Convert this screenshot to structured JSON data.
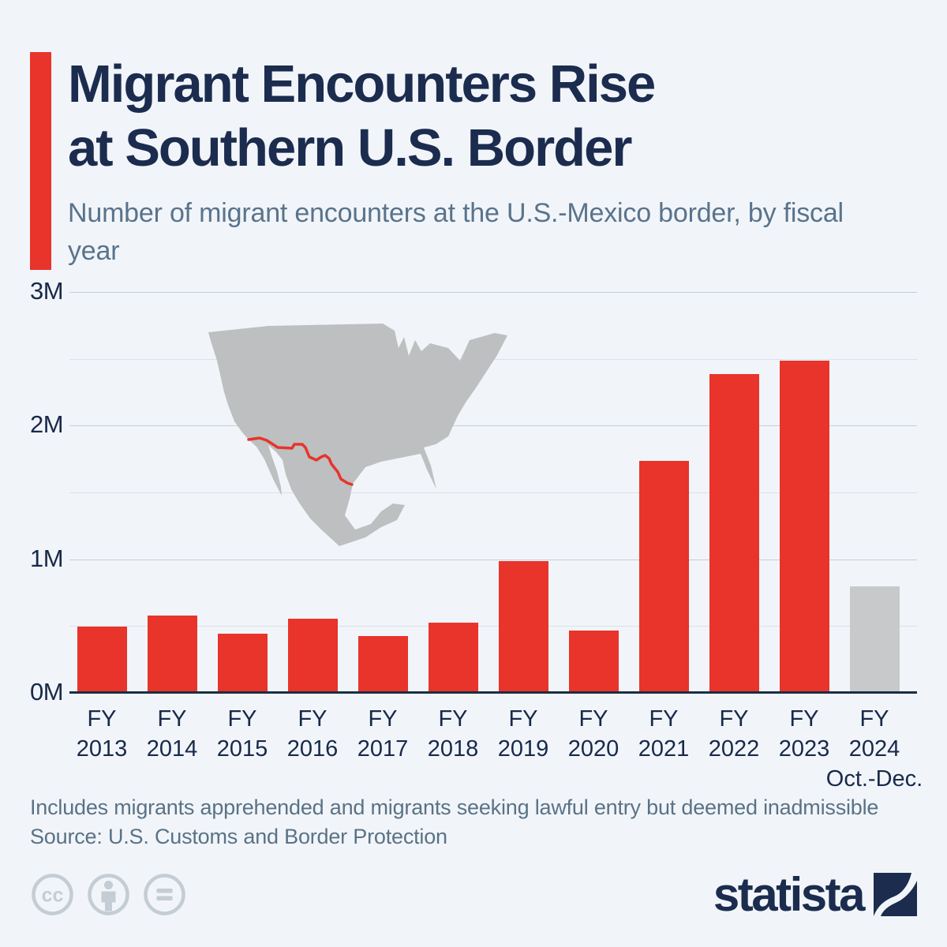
{
  "header": {
    "title_line1": "Migrant Encounters Rise",
    "title_line2": "at Southern U.S. Border",
    "subtitle": "Number of migrant encounters at the U.S.-Mexico border, by fiscal year",
    "accent_color": "#e8342a",
    "title_color": "#1b2c4e",
    "subtitle_color": "#5a738c"
  },
  "chart_data": {
    "type": "bar",
    "title": "Number of migrant encounters at the U.S.-Mexico border, by fiscal year",
    "unit": "millions of encounters",
    "categories": [
      "FY 2013",
      "FY 2014",
      "FY 2015",
      "FY 2016",
      "FY 2017",
      "FY 2018",
      "FY 2019",
      "FY 2020",
      "FY 2021",
      "FY 2022",
      "FY 2023",
      "FY 2024"
    ],
    "last_category_note": "Oct.-Dec.",
    "values": [
      0.49,
      0.57,
      0.44,
      0.55,
      0.42,
      0.52,
      0.98,
      0.46,
      1.73,
      2.38,
      2.48,
      0.79
    ],
    "ylim": [
      0,
      3
    ],
    "ytick_values": [
      3,
      2,
      1,
      0
    ],
    "ytick_labels": [
      "3M",
      "2M",
      "1M",
      "0M"
    ],
    "gridline_step": 0.5,
    "grid": true,
    "legend": "none",
    "bar_color": "#e8342a",
    "last_bar_color": "#c8c9ca",
    "map_overlay": "Gray silhouette of the U.S. and Mexico with the shared border traced in red"
  },
  "footer": {
    "note": "Includes migrants apprehended and migrants seeking lawful entry but deemed inadmissible",
    "source": "Source: U.S. Customs and Border Protection"
  },
  "branding": {
    "logo_text": "statista",
    "logo_color": "#1b2c4e",
    "license_icons": [
      "cc-icon",
      "by-icon",
      "nd-icon"
    ],
    "icon_color": "#c4ccd4"
  }
}
